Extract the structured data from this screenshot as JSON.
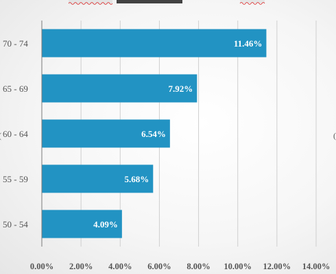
{
  "chart_data": {
    "type": "bar",
    "orientation": "horizontal",
    "title": "",
    "xlabel": "",
    "ylabel": "",
    "categories": [
      "70 - 74",
      "65 - 69",
      "60 - 64",
      "55 - 59",
      "50 - 54"
    ],
    "values": [
      11.46,
      7.92,
      6.54,
      5.68,
      4.09
    ],
    "value_labels": [
      "11.46%",
      "7.92%",
      "6.54%",
      "5.68%",
      "4.09%"
    ],
    "xlim": [
      0,
      14
    ],
    "x_ticks": [
      0,
      2,
      4,
      6,
      8,
      10,
      12,
      14
    ],
    "x_tick_labels": [
      "0.00%",
      "2.00%",
      "4.00%",
      "6.00%",
      "8.00%",
      "10.00%",
      "12.00%",
      "14.00%"
    ],
    "grid": true,
    "legend": "none",
    "bar_color": "#2293c3"
  }
}
